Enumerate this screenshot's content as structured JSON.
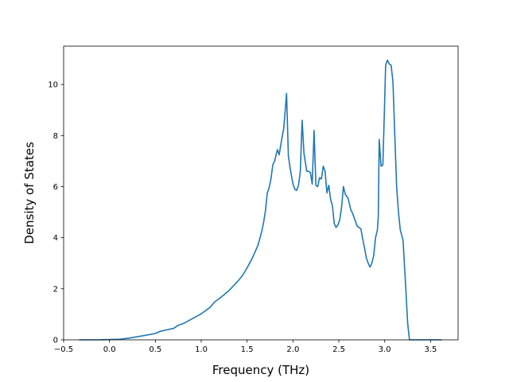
{
  "chart_data": {
    "type": "line",
    "title": "",
    "xlabel": "Frequency (THz)",
    "ylabel": "Density of States",
    "xlim": [
      -0.5,
      3.8
    ],
    "ylim": [
      0,
      11.5
    ],
    "grid": false,
    "xticks": [
      -0.5,
      0.0,
      0.5,
      1.0,
      1.5,
      2.0,
      2.5,
      3.0,
      3.5
    ],
    "xtick_labels": [
      "−0.5",
      "0.0",
      "0.5",
      "1.0",
      "1.5",
      "2.0",
      "2.5",
      "3.0",
      "3.5"
    ],
    "yticks": [
      0,
      2,
      4,
      6,
      8,
      10
    ],
    "ytick_labels": [
      "0",
      "2",
      "4",
      "6",
      "8",
      "10"
    ],
    "series": [
      {
        "color": "#1f77b4",
        "x": [
          -0.33,
          -0.1,
          0.1,
          0.2,
          0.3,
          0.4,
          0.5,
          0.55,
          0.6,
          0.7,
          0.75,
          0.8,
          0.9,
          1.0,
          1.1,
          1.15,
          1.2,
          1.3,
          1.4,
          1.45,
          1.5,
          1.55,
          1.6,
          1.62,
          1.66,
          1.68,
          1.7,
          1.72,
          1.74,
          1.76,
          1.78,
          1.8,
          1.83,
          1.85,
          1.87,
          1.9,
          1.93,
          1.95,
          1.97,
          2.0,
          2.02,
          2.04,
          2.06,
          2.08,
          2.1,
          2.12,
          2.15,
          2.17,
          2.19,
          2.21,
          2.23,
          2.25,
          2.27,
          2.29,
          2.31,
          2.33,
          2.35,
          2.37,
          2.39,
          2.41,
          2.43,
          2.45,
          2.47,
          2.49,
          2.51,
          2.53,
          2.55,
          2.57,
          2.6,
          2.63,
          2.65,
          2.68,
          2.7,
          2.72,
          2.74,
          2.76,
          2.78,
          2.8,
          2.82,
          2.84,
          2.86,
          2.88,
          2.9,
          2.92,
          2.93,
          2.94,
          2.96,
          2.98,
          3.0,
          3.01,
          3.03,
          3.05,
          3.07,
          3.09,
          3.11,
          3.13,
          3.15,
          3.17,
          3.2,
          3.23,
          3.25,
          3.27,
          3.29,
          3.31,
          3.33,
          3.4,
          3.5,
          3.62
        ],
        "y": [
          0.0,
          0.0,
          0.02,
          0.06,
          0.12,
          0.18,
          0.25,
          0.33,
          0.37,
          0.45,
          0.57,
          0.63,
          0.82,
          1.02,
          1.28,
          1.5,
          1.62,
          1.92,
          2.3,
          2.52,
          2.82,
          3.15,
          3.55,
          3.72,
          4.25,
          4.6,
          5.05,
          5.75,
          5.95,
          6.3,
          6.85,
          7.0,
          7.45,
          7.25,
          7.7,
          8.3,
          9.65,
          7.2,
          6.7,
          6.1,
          5.9,
          5.85,
          6.05,
          6.6,
          8.6,
          7.3,
          6.6,
          6.6,
          6.55,
          6.1,
          8.2,
          6.05,
          6.0,
          6.35,
          6.3,
          6.8,
          6.6,
          5.75,
          6.05,
          5.5,
          5.25,
          4.55,
          4.4,
          4.5,
          4.7,
          5.2,
          6.0,
          5.7,
          5.55,
          5.1,
          4.95,
          4.65,
          4.45,
          4.4,
          4.35,
          3.95,
          3.6,
          3.2,
          3.0,
          2.85,
          3.0,
          3.3,
          4.0,
          4.3,
          4.8,
          7.85,
          6.8,
          6.85,
          9.4,
          10.75,
          10.95,
          10.8,
          10.75,
          10.1,
          8.0,
          6.0,
          5.0,
          4.3,
          3.9,
          2.0,
          0.65,
          0.0,
          0.0,
          0.0,
          0.0,
          0.0,
          0.0,
          0.0
        ]
      }
    ]
  }
}
